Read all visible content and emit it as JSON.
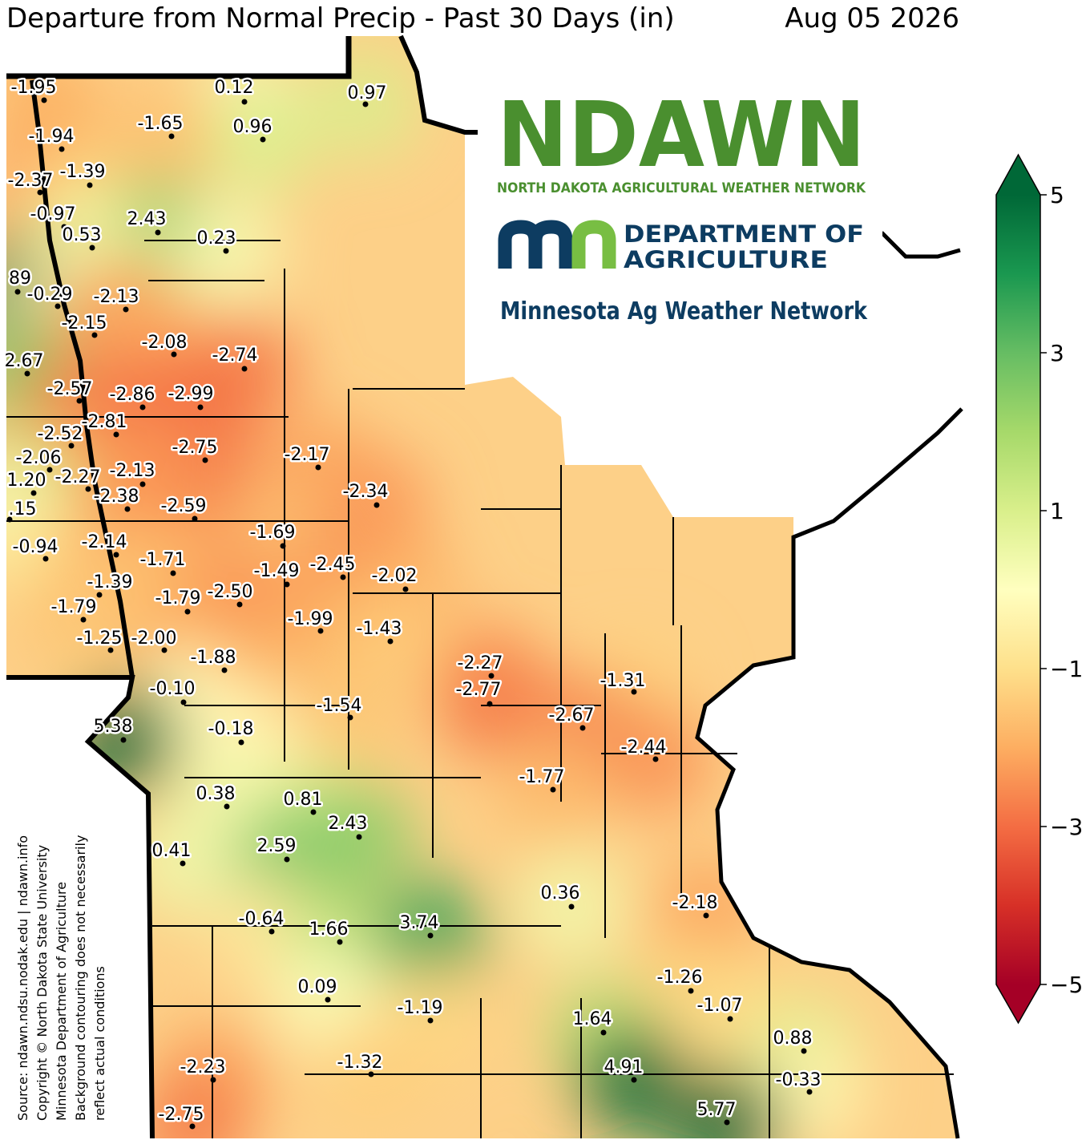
{
  "title": "Departure from Normal Precip - Past 30 Days (in)",
  "date": "Aug 05 2026",
  "logos": {
    "ndawn": "NDAWN",
    "ndawn_sub": "NORTH DAKOTA AGRICULTURAL WEATHER NETWORK",
    "mda_line1": "DEPARTMENT OF",
    "mda_line2": "AGRICULTURE",
    "mawn": "Minnesota Ag Weather Network"
  },
  "credits": [
    "Source: ndawn.ndsu.nodak.edu | ndawn.info",
    "Copyright © North Dakota State University",
    "Minnesota Department of Agriculture",
    "Background contouring does not necessarily",
    "reflect actual conditions"
  ],
  "stations": [
    "-1.95",
    "0.12",
    "0.97",
    "-1.65",
    "0.96",
    "-1.94",
    "-2.37",
    "-1.39",
    "-0.97",
    "2.43",
    "0.53",
    "0.23",
    "89",
    "-0.29",
    "-2.13",
    "-2.15",
    "-2.08",
    "-2.74",
    "2.67",
    "-2.57",
    "-2.86",
    "-2.99",
    "-2.52",
    "-2.81",
    "-2.75",
    "-2.17",
    "-2.06",
    "-2.27",
    "-2.13",
    "1.20",
    "-2.38",
    "-2.59",
    "-2.34",
    ".15",
    "-0.94",
    "-2.14",
    "-1.69",
    "-1.71",
    "-1.49",
    "-2.45",
    "-2.02",
    "-1.39",
    "-1.79",
    "-1.79",
    "-2.50",
    "-1.99",
    "-1.43",
    "-1.25",
    "-2.00",
    "-1.88",
    "-2.27",
    "-2.77",
    "-1.31",
    "-0.10",
    "-1.54",
    "-2.67",
    "5.38",
    "-0.18",
    "-2.44",
    "-1.77",
    "0.38",
    "0.81",
    "2.43",
    "0.41",
    "2.59",
    "0.36",
    "-2.18",
    "-0.64",
    "1.66",
    "3.74",
    "-1.26",
    "0.09",
    "-1.19",
    "-1.07",
    "1.64",
    "0.88",
    "-1.32",
    "-2.23",
    "4.91",
    "-0.33",
    "5.77",
    "-2.75"
  ],
  "colorbar": {
    "clim": [
      -5,
      5
    ],
    "colors": [
      "#a50026",
      "#d73027",
      "#f46d43",
      "#fdae61",
      "#fee08b",
      "#ffffbf",
      "#d9ef8b",
      "#a6d96a",
      "#66bd63",
      "#1a9850",
      "#006837"
    ],
    "ticks": [
      5,
      3,
      1,
      {
        "value": -1,
        "label": "−1"
      },
      {
        "value": -3,
        "label": "−3"
      },
      {
        "value": -5,
        "label": "−5"
      }
    ]
  }
}
